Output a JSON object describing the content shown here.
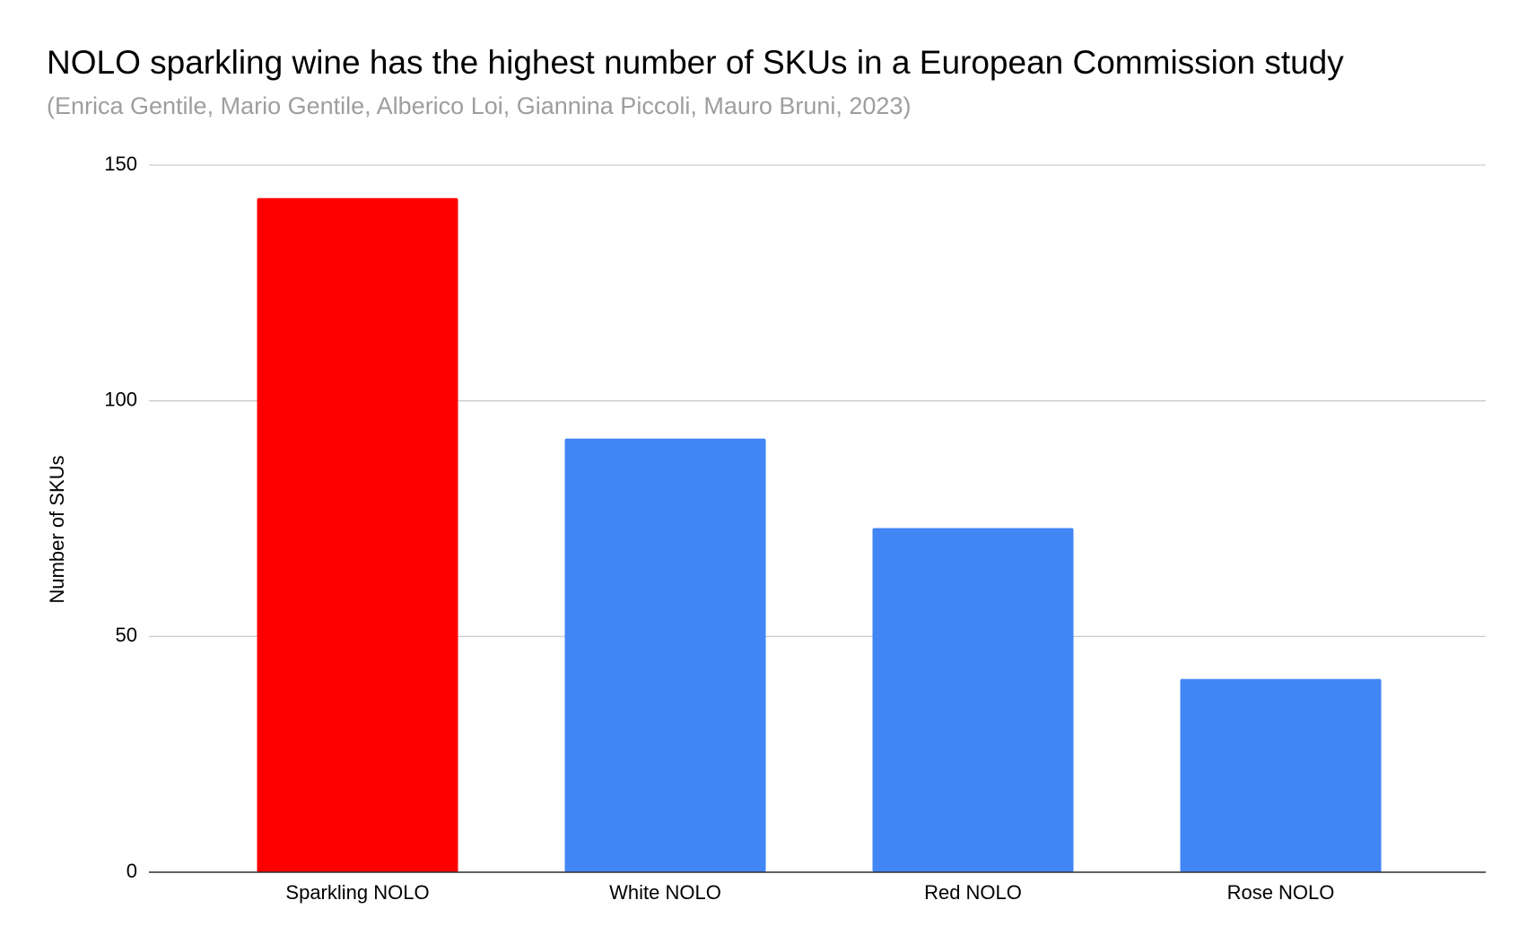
{
  "chart_data": {
    "type": "bar",
    "title": "NOLO sparkling wine has the highest number of SKUs in a European Commission study",
    "subtitle": "(Enrica Gentile, Mario Gentile, Alberico Loi, Giannina Piccoli, Mauro Bruni, 2023)",
    "y_label": "Number of SKUs",
    "categories": [
      "Sparkling NOLO",
      "White NOLO",
      "Red NOLO",
      "Rose NOLO"
    ],
    "values": [
      143,
      92,
      73,
      41
    ],
    "colors": [
      "#ff0000",
      "#4285f4",
      "#4285f4",
      "#4285f4"
    ],
    "ylim": [
      0,
      150
    ],
    "yticks": [
      0,
      50,
      100,
      150
    ],
    "grid": true
  }
}
